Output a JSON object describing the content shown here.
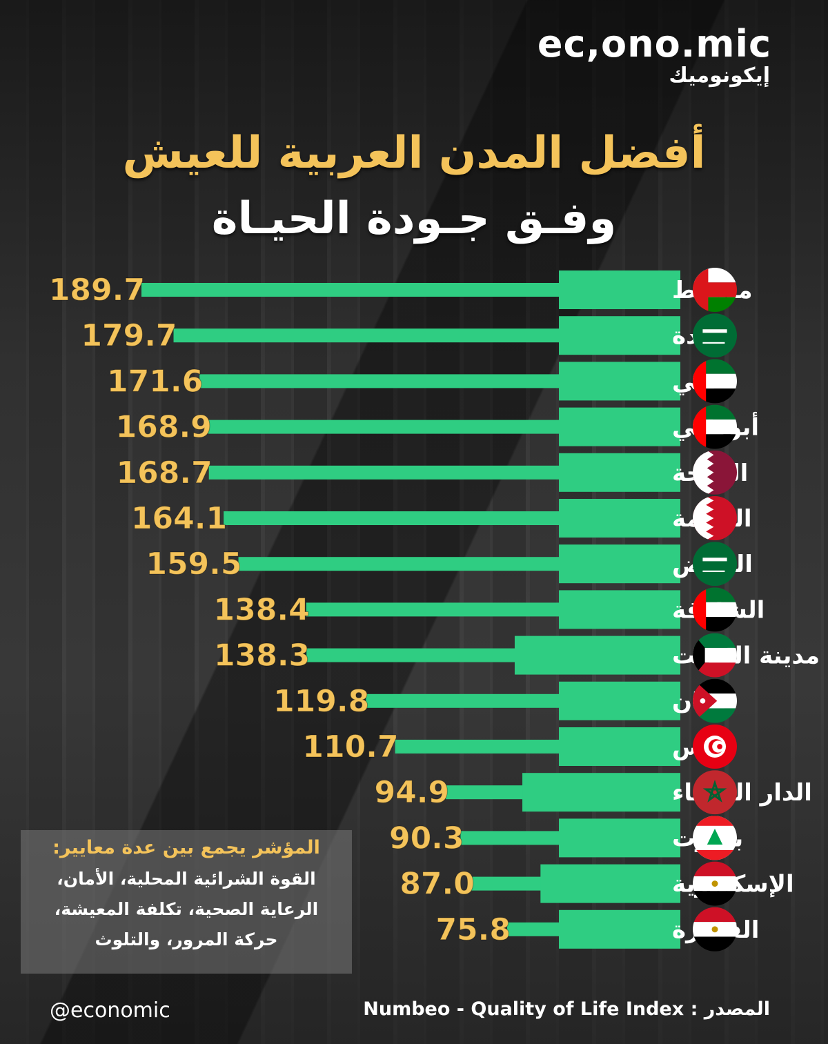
{
  "brand": {
    "logo_en": "ec,ono.mic",
    "logo_ar": "إيكونوميك",
    "handle": "@economic"
  },
  "title": {
    "line1": "أفضل المدن العربية للعيش",
    "line2": "وفـق جـودة الحيـاة"
  },
  "note": {
    "heading": "المؤشر يجمع بين عدة معايير:",
    "line1": "القوة الشرائية المحلية، الأمان،",
    "line2": "الرعاية الصحية، تكلفة المعيشة،",
    "line3": "حركة المرور، والتلوث"
  },
  "source": {
    "label": "المصدر :",
    "text": "Numbeo - Quality of Life Index"
  },
  "colors": {
    "bar": "#2fcd82",
    "value": "#f4c35a",
    "title_accent": "#f4c35a"
  },
  "chart_data": {
    "type": "bar",
    "orientation": "horizontal",
    "title": "أفضل المدن العربية للعيش وفق جودة الحياة",
    "categories": [
      "مسقط",
      "جدة",
      "دبي",
      "أبوظبي",
      "الدوحة",
      "المنامة",
      "الرياض",
      "الشارقة",
      "مدينة الكويت",
      "عمّان",
      "تونس",
      "الدار البيضاء",
      "بيروت",
      "الإسكندرية",
      "القاهرة"
    ],
    "values": [
      189.7,
      179.7,
      171.6,
      168.9,
      168.7,
      164.1,
      159.5,
      138.4,
      138.3,
      119.8,
      110.7,
      94.9,
      90.3,
      87.0,
      75.8
    ],
    "value_labels": [
      "189.7",
      "179.7",
      "171.6",
      "168.9",
      "168.7",
      "164.1",
      "159.5",
      "138.4",
      "138.3",
      "119.8",
      "110.7",
      "94.9",
      "90.3",
      "87.0",
      "75.8"
    ],
    "flags": [
      "oman-flag",
      "saudi-flag",
      "uae-flag",
      "uae-flag",
      "qatar-flag",
      "bahrain-flag",
      "saudi-flag",
      "uae-flag",
      "kuwait-flag",
      "jordan-flag",
      "tunisia-flag",
      "morocco-flag",
      "lebanon-flag",
      "egypt-flag",
      "egypt-flag"
    ],
    "grid": false,
    "legend": "none"
  }
}
